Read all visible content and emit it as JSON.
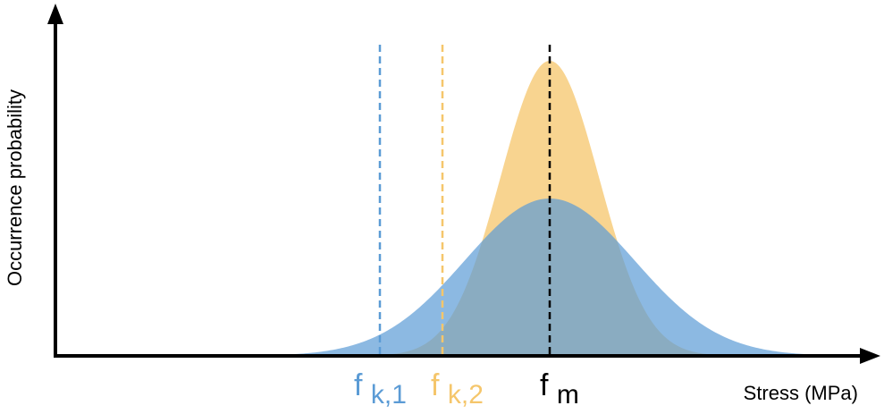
{
  "diagram": {
    "x_axis_label": "Stress (MPa)",
    "y_axis_label": "Occurrence probability",
    "labels": {
      "fk1_main": "f",
      "fk1_sub": "k,1",
      "fk2_main": "f",
      "fk2_sub": "k,2",
      "fm_main": "f",
      "fm_sub": "m"
    }
  },
  "colors": {
    "axis": "#000000",
    "wide_distribution": "#5b9bd5",
    "narrow_distribution": "#f5c66b",
    "fk1": "#5b9bd5",
    "fk2": "#f5c66b",
    "fm": "#000000"
  }
}
